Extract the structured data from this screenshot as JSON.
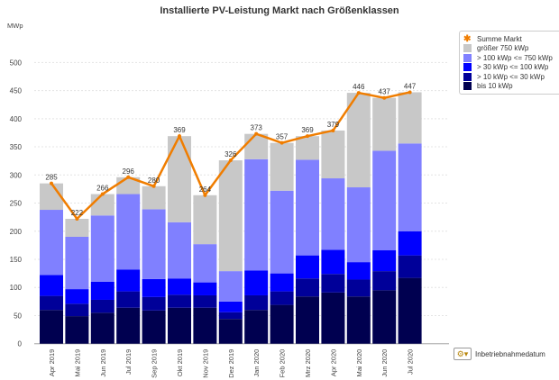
{
  "chart_data": {
    "type": "bar",
    "stacked": true,
    "title": "Installierte PV-Leistung Markt nach Größenklassen",
    "ylabel": "MWp",
    "xlabel": "Inbetriebnahmedatum",
    "ylim": [
      0,
      500
    ],
    "yticks": [
      0,
      50,
      100,
      150,
      200,
      250,
      300,
      350,
      400,
      450,
      500
    ],
    "grid": true,
    "legend_position": "right",
    "categories": [
      "Apr 2019",
      "Mai 2019",
      "Jun 2019",
      "Jul 2019",
      "Sep 2019",
      "Okt 2019",
      "Nov 2019",
      "Dez 2019",
      "Jan 2020",
      "Feb 2020",
      "Mrz 2020",
      "Apr 2020",
      "Mai 2020",
      "Jun 2020",
      "Jul 2020"
    ],
    "series": [
      {
        "name": "bis 10 kWp",
        "color": "#000050",
        "values": [
          60,
          49,
          55,
          64,
          59,
          64,
          64,
          44,
          60,
          69,
          84,
          91,
          84,
          95,
          117
        ]
      },
      {
        "name": "> 10 kWp <= 30 kWp",
        "color": "#000099",
        "values": [
          25,
          22,
          23,
          29,
          24,
          23,
          22,
          12,
          26,
          24,
          32,
          33,
          30,
          34,
          40
        ]
      },
      {
        "name": "> 30 kWp <= 100 kWp",
        "color": "#0000ff",
        "values": [
          37,
          26,
          32,
          39,
          32,
          29,
          23,
          19,
          44,
          32,
          41,
          43,
          31,
          37,
          43
        ]
      },
      {
        "name": "> 100 kWp <= 750 kWp",
        "color": "#8080ff",
        "values": [
          116,
          93,
          118,
          134,
          124,
          100,
          68,
          54,
          198,
          147,
          170,
          127,
          133,
          177,
          156
        ]
      },
      {
        "name": "größer 750 kWp",
        "color": "#c8c8c8",
        "values": [
          47,
          32,
          38,
          30,
          41,
          153,
          87,
          197,
          45,
          85,
          42,
          85,
          168,
          94,
          91
        ]
      }
    ],
    "line": {
      "name": "Summe Markt",
      "color": "#f07d00",
      "values": [
        285,
        222,
        266,
        296,
        280,
        369,
        264,
        326,
        373,
        357,
        369,
        379,
        446,
        437,
        447
      ]
    }
  }
}
